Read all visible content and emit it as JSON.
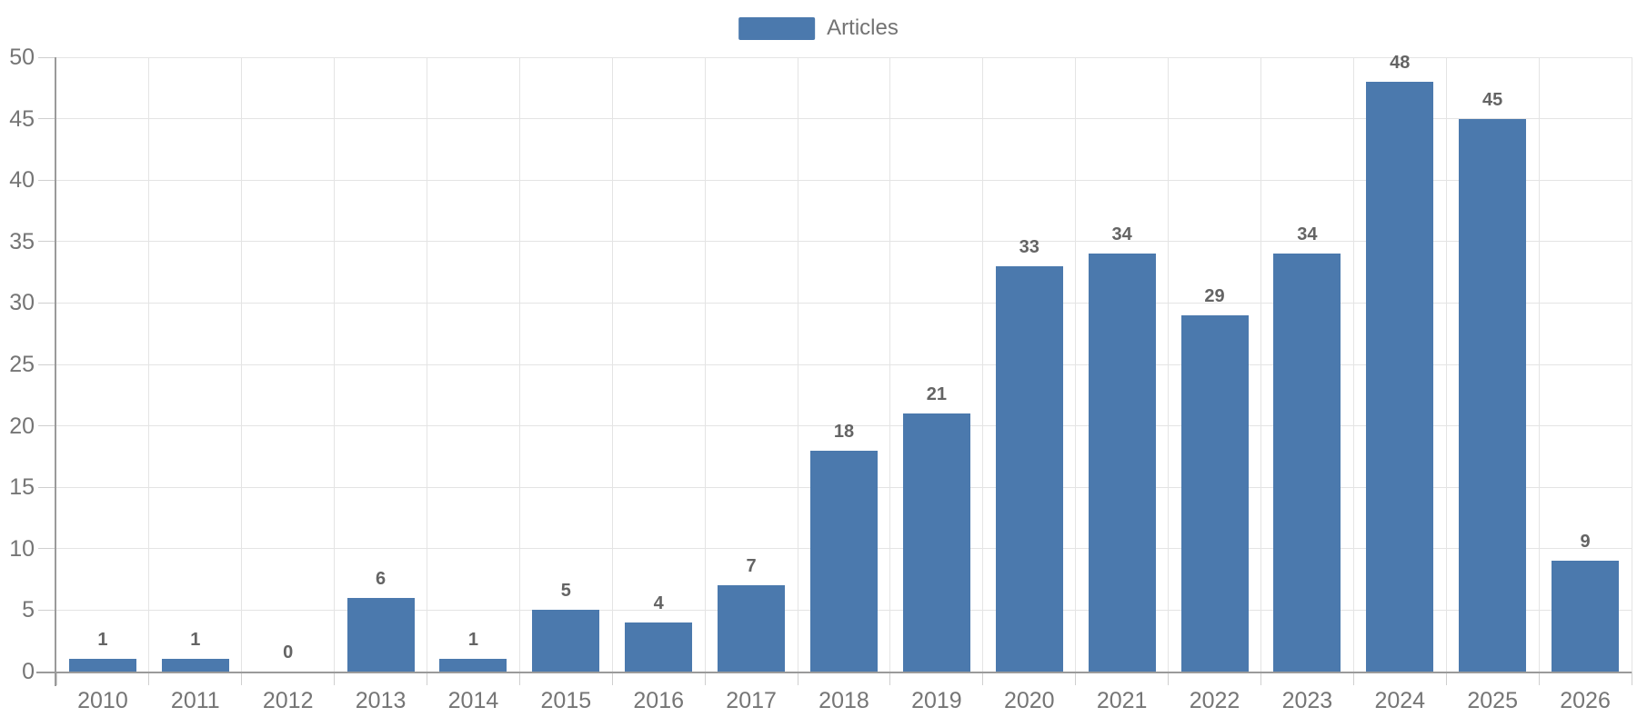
{
  "legend": {
    "items": [
      {
        "label": "Articles",
        "swatch_color": "#4b79ad"
      }
    ]
  },
  "chart_data": {
    "type": "bar",
    "title": "",
    "xlabel": "",
    "ylabel": "",
    "categories": [
      "2010",
      "2011",
      "2012",
      "2013",
      "2014",
      "2015",
      "2016",
      "2017",
      "2018",
      "2019",
      "2020",
      "2021",
      "2022",
      "2023",
      "2024",
      "2025",
      "2026"
    ],
    "series": [
      {
        "name": "Articles",
        "color": "#4b79ad",
        "values": [
          1,
          1,
          0,
          6,
          1,
          5,
          4,
          7,
          18,
          21,
          33,
          34,
          29,
          34,
          48,
          45,
          9
        ]
      }
    ],
    "ylim": [
      0,
      50
    ],
    "y_ticks": [
      0,
      5,
      10,
      15,
      20,
      25,
      30,
      35,
      40,
      45,
      50
    ],
    "grid": true,
    "value_labels_shown": true,
    "legend_position": "top-center",
    "colors": {
      "bar": "#4b79ad",
      "value_label": "#646464",
      "tick_label": "#757575",
      "axis_line": "#9a9a9a",
      "grid_line": "#e4e4e4",
      "tick_mark": "#cfcfcf",
      "background": "#ffffff"
    }
  }
}
